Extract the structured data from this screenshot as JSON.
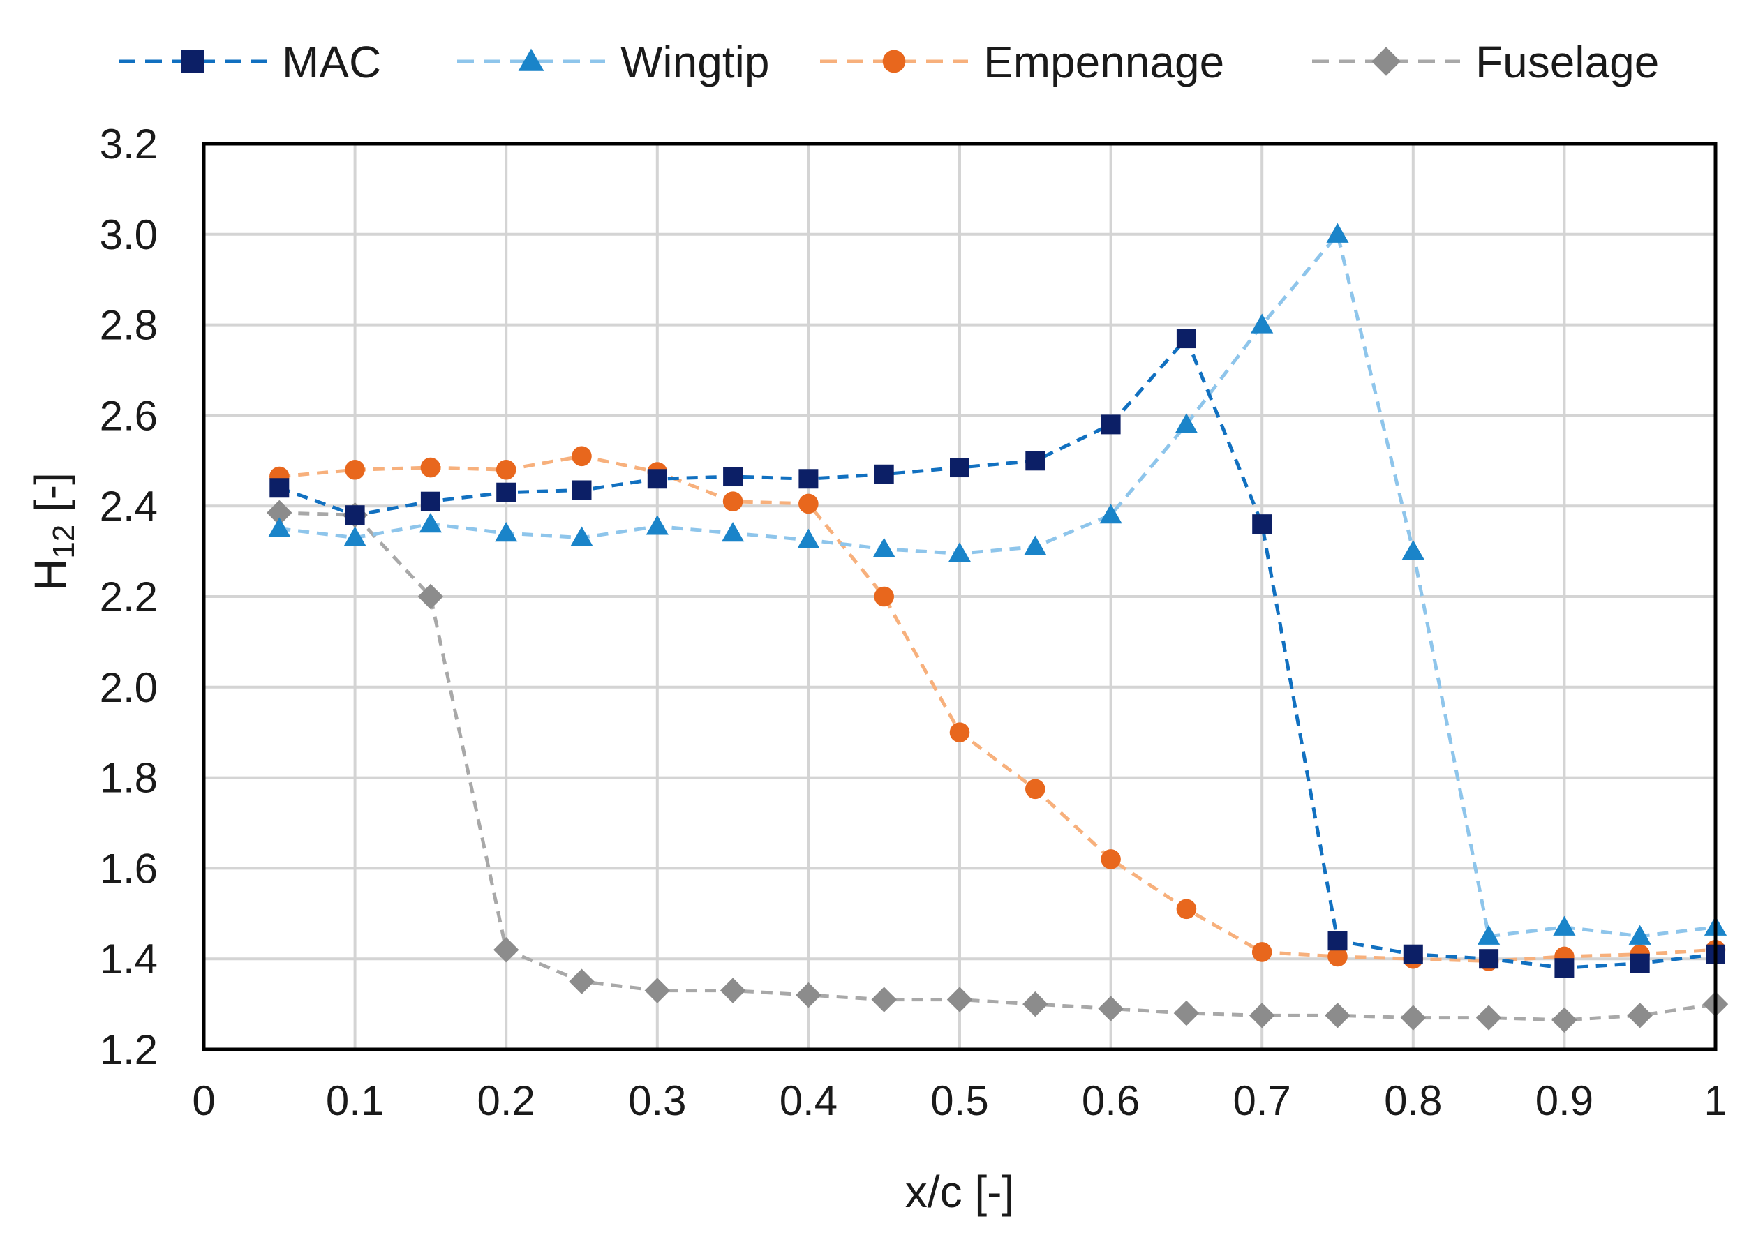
{
  "chart_data": {
    "type": "line",
    "title": "",
    "xlabel": "x/c [-]",
    "ylabel_main": "H",
    "ylabel_sub": "12",
    "ylabel_unit": " [-]",
    "xlim": [
      0,
      1
    ],
    "ylim": [
      1.2,
      3.2
    ],
    "grid": true,
    "legend_position": "top",
    "x_ticks": [
      {
        "value": 0,
        "label": "0"
      },
      {
        "value": 0.1,
        "label": "0.1"
      },
      {
        "value": 0.2,
        "label": "0.2"
      },
      {
        "value": 0.3,
        "label": "0.3"
      },
      {
        "value": 0.4,
        "label": "0.4"
      },
      {
        "value": 0.5,
        "label": "0.5"
      },
      {
        "value": 0.6,
        "label": "0.6"
      },
      {
        "value": 0.7,
        "label": "0.7"
      },
      {
        "value": 0.8,
        "label": "0.8"
      },
      {
        "value": 0.9,
        "label": "0.9"
      },
      {
        "value": 1,
        "label": "1"
      }
    ],
    "y_ticks": [
      {
        "value": 1.2,
        "label": "1.2"
      },
      {
        "value": 1.4,
        "label": "1.4"
      },
      {
        "value": 1.6,
        "label": "1.6"
      },
      {
        "value": 1.8,
        "label": "1.8"
      },
      {
        "value": 2.0,
        "label": "2.0"
      },
      {
        "value": 2.2,
        "label": "2.2"
      },
      {
        "value": 2.4,
        "label": "2.4"
      },
      {
        "value": 2.6,
        "label": "2.6"
      },
      {
        "value": 2.8,
        "label": "2.8"
      },
      {
        "value": 3.0,
        "label": "3.0"
      },
      {
        "value": 3.2,
        "label": "3.2"
      }
    ],
    "x": [
      0.05,
      0.1,
      0.15,
      0.2,
      0.25,
      0.3,
      0.35,
      0.4,
      0.45,
      0.5,
      0.55,
      0.6,
      0.65,
      0.7,
      0.75,
      0.8,
      0.85,
      0.9,
      0.95,
      1.0
    ],
    "series": [
      {
        "name": "MAC",
        "line_color": "#1170c0",
        "marker_color": "#0c1f66",
        "marker": "square",
        "values": [
          2.44,
          2.38,
          2.41,
          2.43,
          2.435,
          2.46,
          2.465,
          2.46,
          2.47,
          2.485,
          2.5,
          2.58,
          2.77,
          2.36,
          1.44,
          1.41,
          1.4,
          1.38,
          1.39,
          1.41
        ]
      },
      {
        "name": "Wingtip",
        "line_color": "#8ec5eb",
        "marker_color": "#1a84c9",
        "marker": "triangle",
        "values": [
          2.35,
          2.33,
          2.36,
          2.34,
          2.33,
          2.355,
          2.34,
          2.325,
          2.305,
          2.295,
          2.31,
          2.38,
          2.58,
          2.8,
          3.0,
          2.3,
          1.45,
          1.47,
          1.45,
          1.47
        ]
      },
      {
        "name": "Empennage",
        "line_color": "#f7b07c",
        "marker_color": "#e8671d",
        "marker": "circle",
        "values": [
          2.465,
          2.48,
          2.485,
          2.48,
          2.51,
          2.475,
          2.41,
          2.405,
          2.2,
          1.9,
          1.775,
          1.62,
          1.51,
          1.415,
          1.405,
          1.4,
          1.395,
          1.405,
          1.41,
          1.42
        ]
      },
      {
        "name": "Fuselage",
        "line_color": "#a8a8a8",
        "marker_color": "#8c8c8c",
        "marker": "diamond",
        "values": [
          2.385,
          2.38,
          2.2,
          1.42,
          1.35,
          1.33,
          1.33,
          1.32,
          1.31,
          1.31,
          1.3,
          1.29,
          1.28,
          1.275,
          1.275,
          1.27,
          1.27,
          1.265,
          1.275,
          1.3
        ]
      }
    ]
  }
}
